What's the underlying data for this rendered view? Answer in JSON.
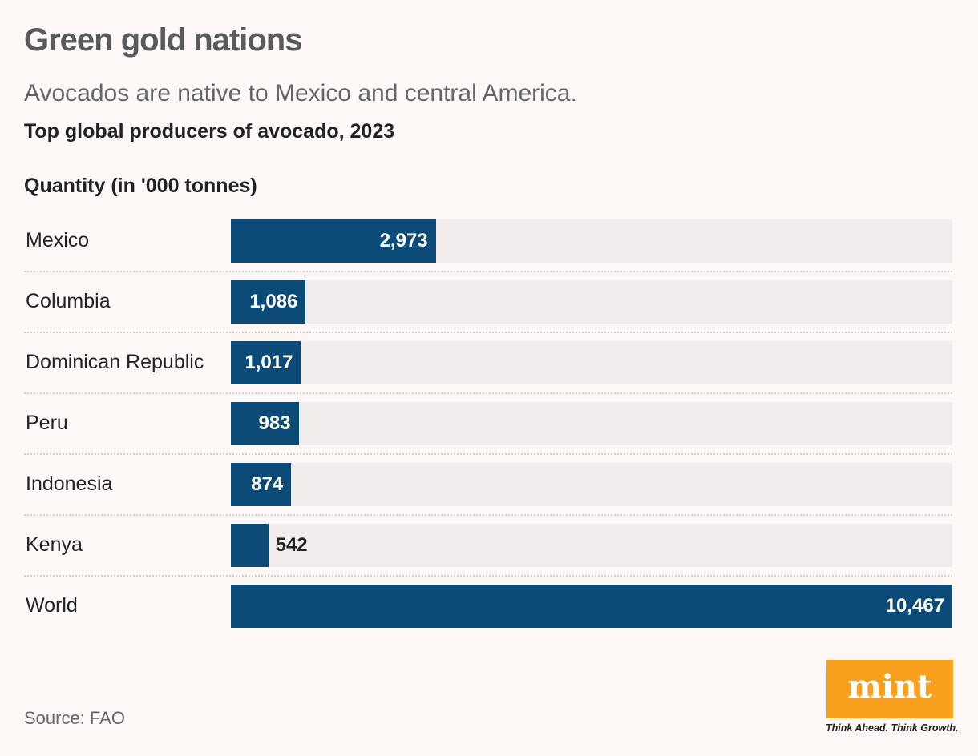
{
  "chart_data": {
    "type": "bar",
    "orientation": "horizontal",
    "title": "Green gold nations",
    "subtitle": "Avocados are native to Mexico and central America.",
    "heading": "Top global producers of avocado, 2023",
    "xlabel": "Quantity (in '000 tonnes)",
    "categories": [
      "Mexico",
      "Columbia",
      "Dominican Republic",
      "Peru",
      "Indonesia",
      "Kenya",
      "World"
    ],
    "values": [
      2973,
      1086,
      1017,
      983,
      874,
      542,
      10467
    ],
    "labels": [
      "2,973",
      "1,086",
      "1,017",
      "983",
      "874",
      "542",
      "10,467"
    ],
    "xlim": [
      0,
      10467
    ],
    "grid": false,
    "colors": {
      "bar": "#0c4a78",
      "track": "#f2eded"
    }
  },
  "source": "Source: FAO",
  "logo": {
    "text": "mint",
    "tagline": "Think Ahead. Think Growth.",
    "color": "#f8a01e"
  }
}
